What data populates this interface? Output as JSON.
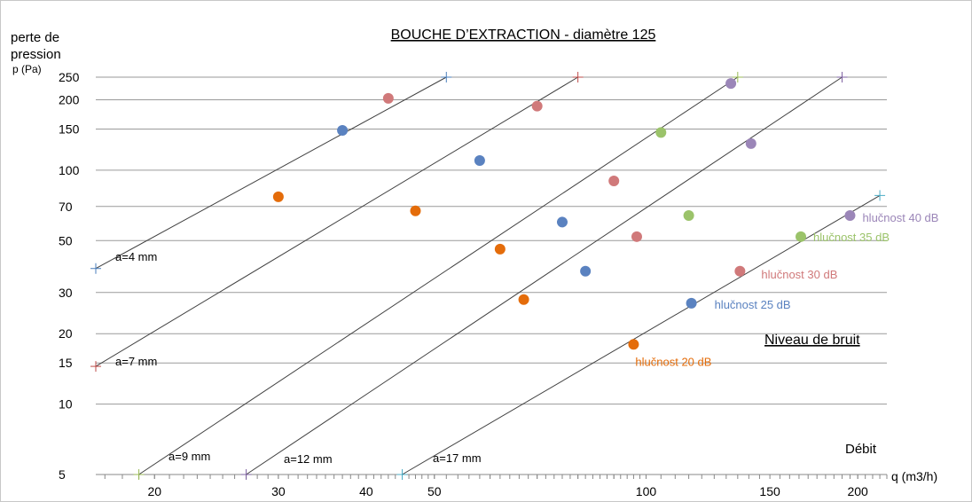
{
  "chart_data": {
    "type": "line",
    "title": "BOUCHE D’EXTRACTION - diamètre 125",
    "ylabel_line1": "perte de",
    "ylabel_line2": "pression",
    "ylabel_line3": "p (Pa)",
    "xlabel": "q (m3/h)",
    "x_axis_caption": "Débit",
    "noise_caption": "Niveau de bruit",
    "x_scale": "log",
    "y_scale": "log",
    "xlim": [
      16.5,
      220
    ],
    "ylim": [
      5,
      250
    ],
    "y_ticks": [
      {
        "value": 5,
        "label": "5"
      },
      {
        "value": 10,
        "label": "10"
      },
      {
        "value": 15,
        "label": "15"
      },
      {
        "value": 20,
        "label": "20"
      },
      {
        "value": 30,
        "label": "30"
      },
      {
        "value": 50,
        "label": "50"
      },
      {
        "value": 70,
        "label": "70"
      },
      {
        "value": 100,
        "label": "100"
      },
      {
        "value": 150,
        "label": "150"
      },
      {
        "value": 200,
        "label": "200"
      },
      {
        "value": 250,
        "label": "250"
      }
    ],
    "x_ticks": [
      {
        "value": 20,
        "label": "20"
      },
      {
        "value": 30,
        "label": "30"
      },
      {
        "value": 40,
        "label": "40"
      },
      {
        "value": 50,
        "label": "50"
      },
      {
        "value": 100,
        "label": "100"
      },
      {
        "value": 150,
        "label": "150"
      },
      {
        "value": 200,
        "label": "200"
      }
    ],
    "grid": true,
    "series": [
      {
        "name": "a=4 mm",
        "color": "#404040",
        "endpoint_color": "#4a7ebb",
        "x": [
          16.5,
          52
        ],
        "y": [
          38,
          250
        ]
      },
      {
        "name": "a=7 mm",
        "color": "#404040",
        "endpoint_color": "#be4b48",
        "x": [
          16.5,
          80
        ],
        "y": [
          14.5,
          250
        ]
      },
      {
        "name": "a=9 mm",
        "color": "#404040",
        "endpoint_color": "#98b954",
        "x": [
          19,
          135
        ],
        "y": [
          5,
          250
        ]
      },
      {
        "name": "a=12 mm",
        "color": "#404040",
        "endpoint_color": "#7d60a0",
        "x": [
          27,
          190
        ],
        "y": [
          5,
          250
        ]
      },
      {
        "name": "a=17 mm",
        "color": "#404040",
        "endpoint_color": "#4bacc6",
        "x": [
          45,
          215
        ],
        "y": [
          5,
          78
        ]
      }
    ],
    "noise_levels": [
      {
        "name": "hlučnost 20 dB",
        "color": "#e46c0a",
        "points": [
          {
            "x": 30,
            "y": 77
          },
          {
            "x": 47,
            "y": 67
          },
          {
            "x": 62,
            "y": 46
          },
          {
            "x": 67,
            "y": 28
          },
          {
            "x": 96,
            "y": 18
          }
        ]
      },
      {
        "name": "hlučnost 25 dB",
        "color": "#5a82c0",
        "points": [
          {
            "x": 37,
            "y": 148
          },
          {
            "x": 58,
            "y": 110
          },
          {
            "x": 76,
            "y": 60
          },
          {
            "x": 82,
            "y": 37
          },
          {
            "x": 116,
            "y": 27
          }
        ]
      },
      {
        "name": "hlučnost 30 dB",
        "color": "#d0797a",
        "points": [
          {
            "x": 43,
            "y": 203
          },
          {
            "x": 70,
            "y": 188
          },
          {
            "x": 90,
            "y": 90
          },
          {
            "x": 97,
            "y": 52
          },
          {
            "x": 136,
            "y": 37
          }
        ]
      },
      {
        "name": "hlučnost 35 dB",
        "color": "#9bc36a",
        "points": [
          {
            "x": 105,
            "y": 145
          },
          {
            "x": 115,
            "y": 64
          },
          {
            "x": 166,
            "y": 52
          }
        ]
      },
      {
        "name": "hlučnost 40 dB",
        "color": "#9b86b8",
        "points": [
          {
            "x": 132,
            "y": 235
          },
          {
            "x": 141,
            "y": 130
          },
          {
            "x": 195,
            "y": 64
          }
        ]
      }
    ]
  }
}
